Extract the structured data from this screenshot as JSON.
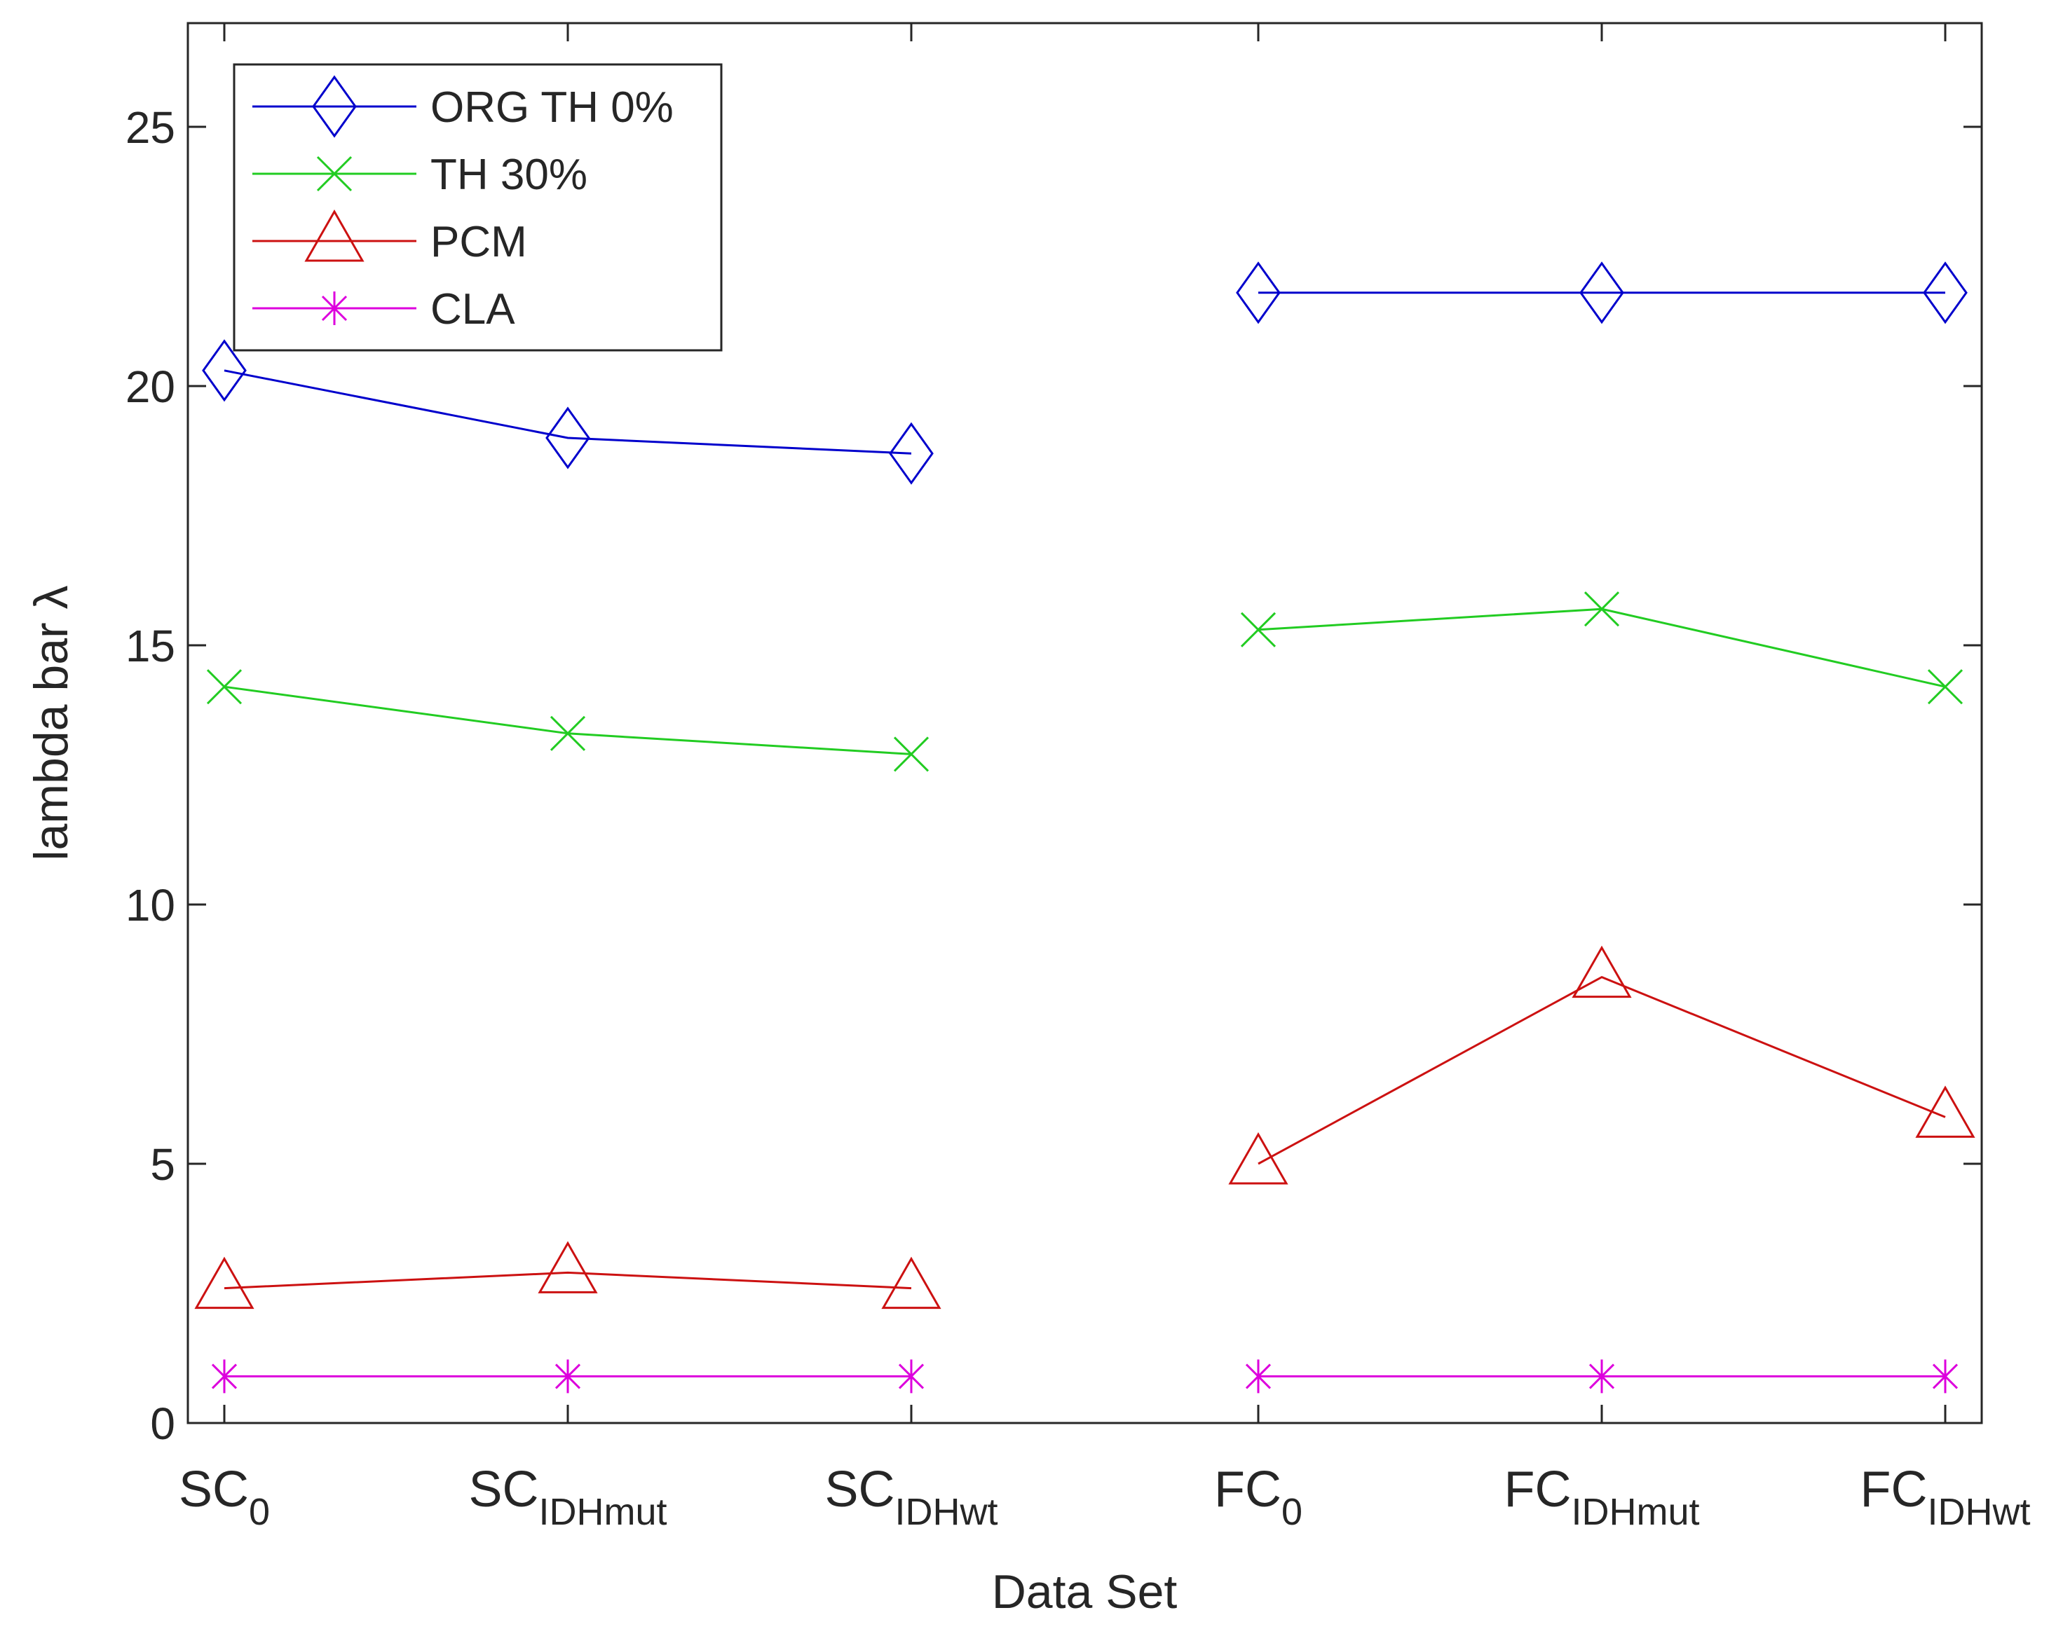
{
  "chart_data": {
    "type": "line",
    "title": "",
    "xlabel": "Data Set",
    "ylabel": "lambda bar λ",
    "ylim": [
      0,
      27
    ],
    "yticks": [
      0,
      5,
      10,
      15,
      20,
      25
    ],
    "categories": [
      {
        "base": "SC",
        "sub": "0"
      },
      {
        "base": "SC",
        "sub": "IDHmut"
      },
      {
        "base": "SC",
        "sub": "IDHwt"
      },
      {
        "base": "FC",
        "sub": "0"
      },
      {
        "base": "FC",
        "sub": "IDHmut"
      },
      {
        "base": "FC",
        "sub": "IDHwt"
      }
    ],
    "segments": [
      [
        0,
        1,
        2
      ],
      [
        3,
        4,
        5
      ]
    ],
    "legend_position": "top-left",
    "series": [
      {
        "name": "ORG TH 0%",
        "color": "#0000cc",
        "marker": "diamond",
        "values": [
          20.3,
          19.0,
          18.7,
          21.8,
          21.8,
          21.8
        ]
      },
      {
        "name": "TH 30%",
        "color": "#22cc22",
        "marker": "x",
        "values": [
          14.2,
          13.3,
          12.9,
          15.3,
          15.7,
          14.2
        ]
      },
      {
        "name": "PCM",
        "color": "#cc1111",
        "marker": "triangle",
        "values": [
          2.6,
          2.9,
          2.6,
          5.0,
          8.6,
          5.9
        ]
      },
      {
        "name": "CLA",
        "color": "#dd00dd",
        "marker": "asterisk",
        "values": [
          0.9,
          0.9,
          0.9,
          0.9,
          0.9,
          0.9
        ]
      }
    ]
  }
}
